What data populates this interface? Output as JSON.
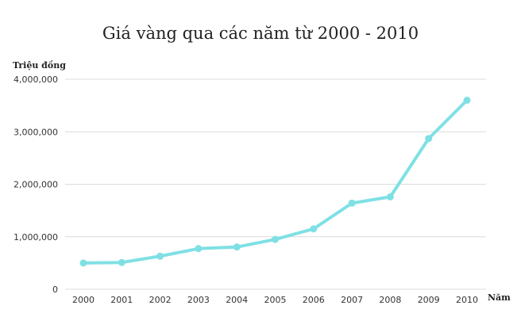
{
  "chart_data": {
    "type": "line",
    "title": "Giá vàng qua các năm từ 2000 - 2010",
    "xlabel": "Năm",
    "ylabel": "Triệu đồng",
    "categories": [
      "2000",
      "2001",
      "2002",
      "2003",
      "2004",
      "2005",
      "2006",
      "2007",
      "2008",
      "2009",
      "2010"
    ],
    "series": [
      {
        "values": [
          500000,
          510000,
          630000,
          775000,
          805000,
          950000,
          1150000,
          1640000,
          1760000,
          2870000,
          3600000
        ]
      }
    ],
    "ylim": [
      0,
      4000000
    ],
    "yticks": [
      0,
      1000000,
      2000000,
      3000000,
      4000000
    ],
    "ytick_labels": [
      "0",
      "1,000,000",
      "2,000,000",
      "3,000,000",
      "4,000,000"
    ],
    "grid": true,
    "line_color": "#7fe0e4",
    "grid_color": "#dcdcdc"
  }
}
